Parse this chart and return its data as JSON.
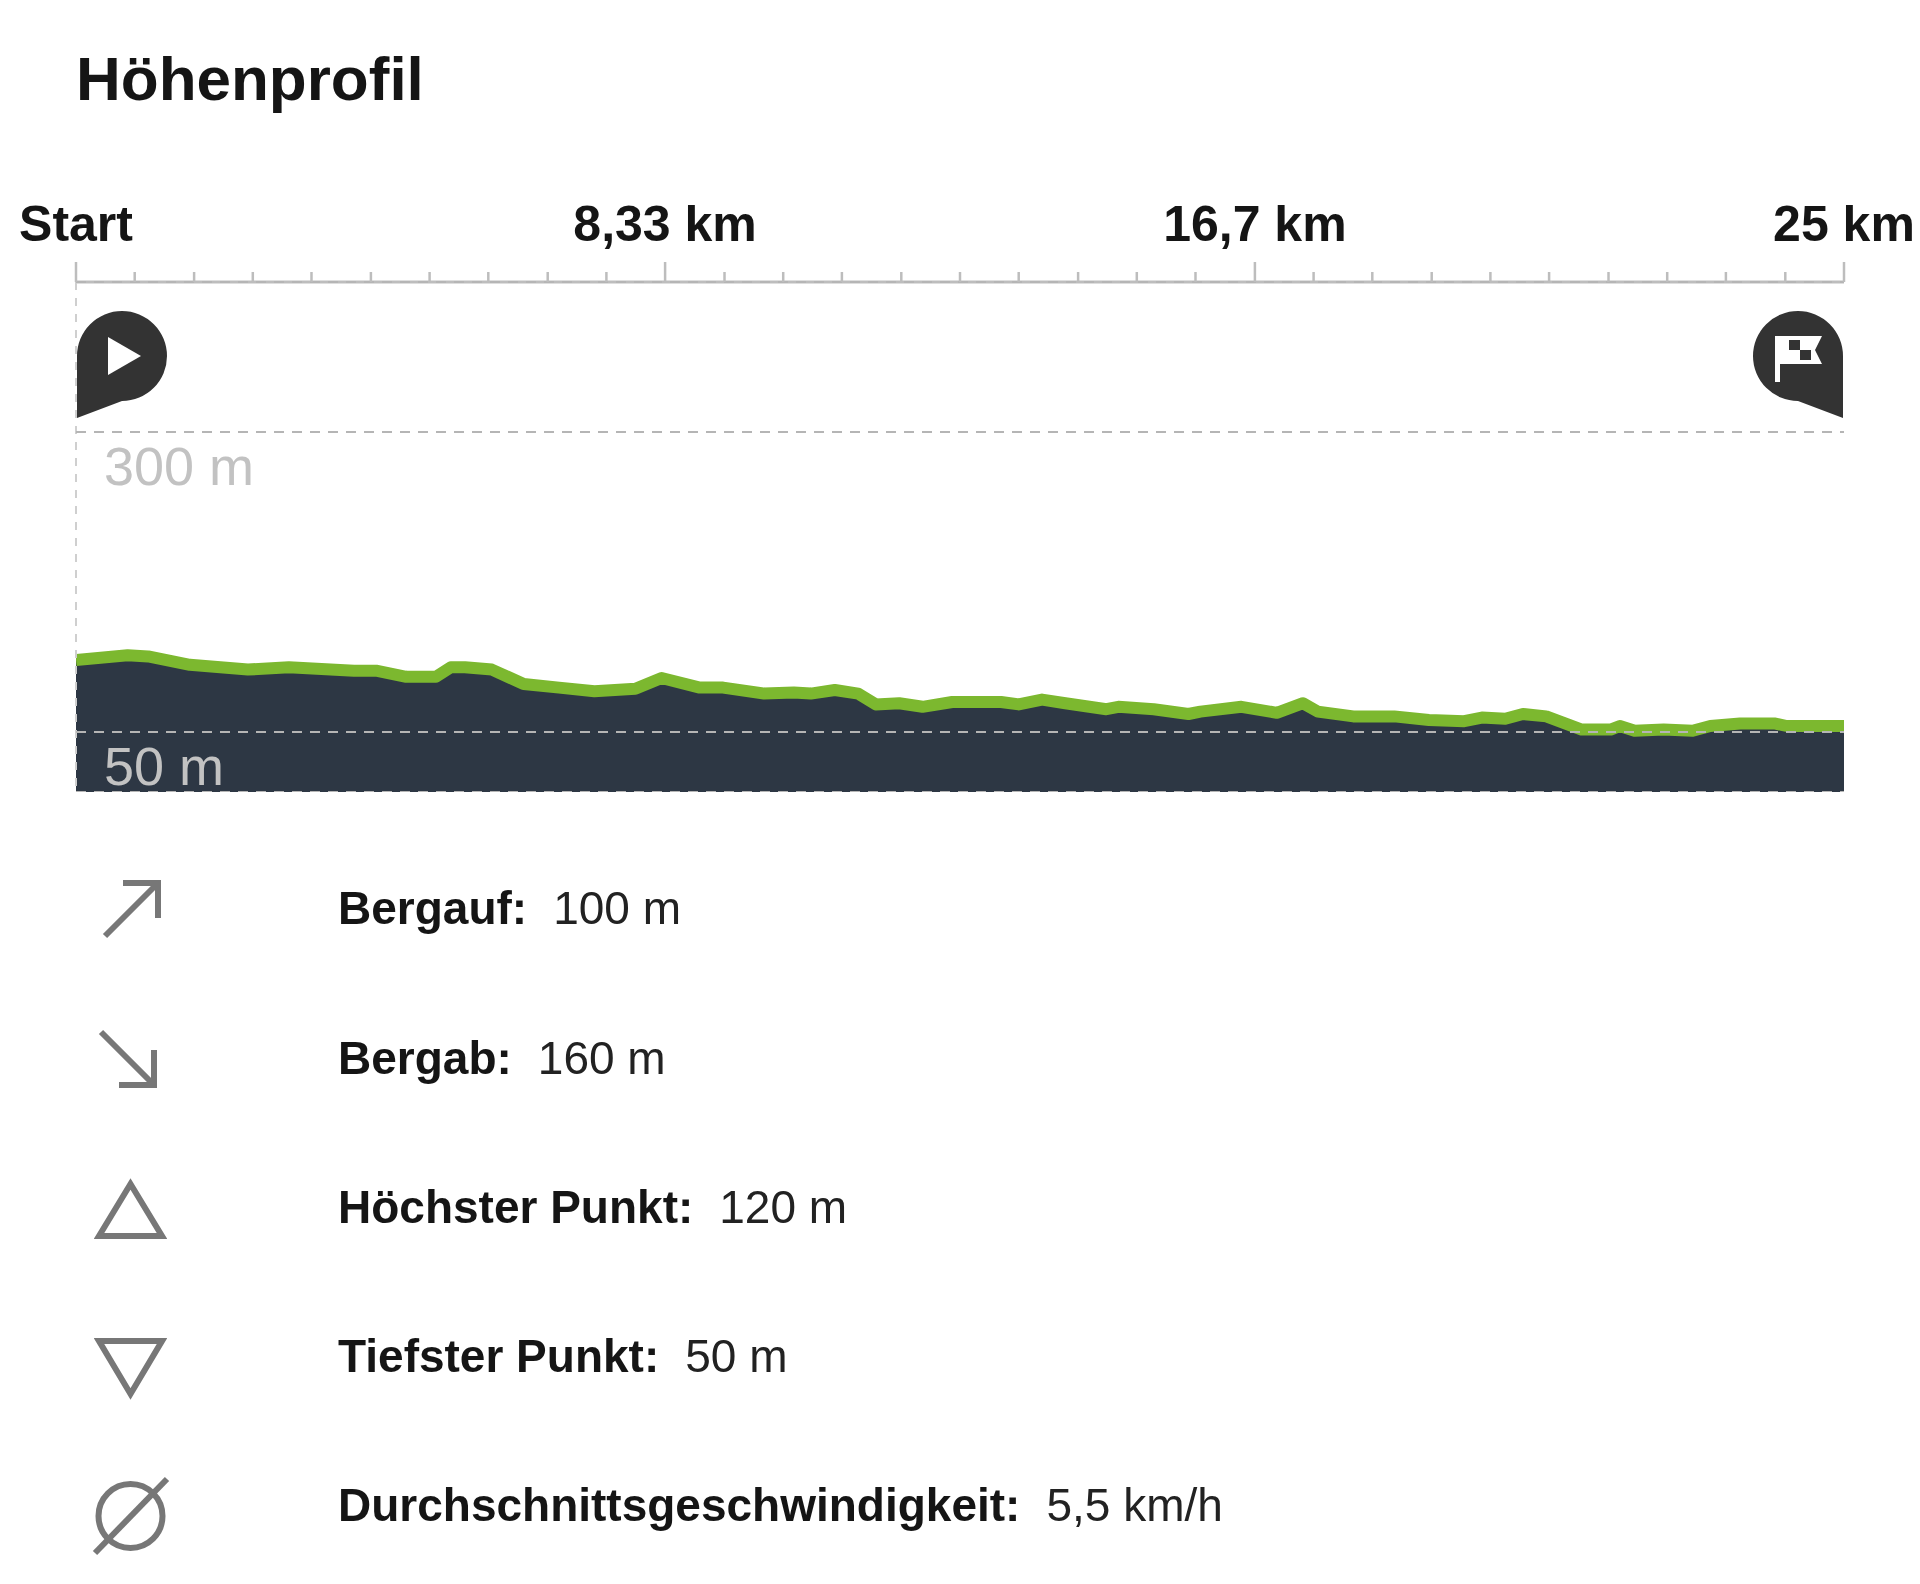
{
  "chart_data": {
    "type": "area",
    "title": "Höhenprofil",
    "x": [
      0,
      0.73,
      1.02,
      1.61,
      2.43,
      3.01,
      3.93,
      4.26,
      4.67,
      5.09,
      5.3,
      5.5,
      5.88,
      6.33,
      6.83,
      7.33,
      7.91,
      8.28,
      8.82,
      9.15,
      9.73,
      10.15,
      10.39,
      10.73,
      11.06,
      11.31,
      11.64,
      11.97,
      12.39,
      13.08,
      13.33,
      13.66,
      13.99,
      14.57,
      14.74,
      15.24,
      15.73,
      15.9,
      16.48,
      16.98,
      17.35,
      17.56,
      18.06,
      18.64,
      19.13,
      19.63,
      19.88,
      20.21,
      20.46,
      20.79,
      21.29,
      21.7,
      21.83,
      22.04,
      22.45,
      22.86,
      23.11,
      23.53,
      24.03,
      24.19,
      25
    ],
    "values": [
      110,
      114,
      113,
      106,
      102,
      104,
      101,
      101,
      96,
      96,
      104,
      104,
      102,
      90,
      87,
      84,
      86,
      95,
      87,
      87,
      82,
      83,
      82,
      85,
      82,
      73,
      74,
      71,
      75,
      75,
      73,
      77,
      74,
      69,
      71,
      69,
      65,
      67,
      71,
      66,
      74,
      67,
      63,
      63,
      60,
      59,
      62,
      61,
      65,
      63,
      52,
      52,
      55,
      51,
      52,
      51,
      55,
      57,
      57,
      55,
      55
    ],
    "color": "#7cb82f",
    "xlim": [
      0,
      25
    ],
    "xticks": [
      {
        "value": 0,
        "label": "Start"
      },
      {
        "value": 0.83,
        "label": null
      },
      {
        "value": 1.67,
        "label": null
      },
      {
        "value": 2.5,
        "label": null
      },
      {
        "value": 3.33,
        "label": null
      },
      {
        "value": 4.17,
        "label": null
      },
      {
        "value": 5,
        "label": null
      },
      {
        "value": 5.83,
        "label": null
      },
      {
        "value": 6.67,
        "label": null
      },
      {
        "value": 7.5,
        "label": null
      },
      {
        "value": 8.33,
        "label": "8,33 km"
      },
      {
        "value": 9.17,
        "label": null
      },
      {
        "value": 10,
        "label": null
      },
      {
        "value": 10.83,
        "label": null
      },
      {
        "value": 11.67,
        "label": null
      },
      {
        "value": 12.5,
        "label": null
      },
      {
        "value": 13.33,
        "label": null
      },
      {
        "value": 14.17,
        "label": null
      },
      {
        "value": 15,
        "label": null
      },
      {
        "value": 15.83,
        "label": null
      },
      {
        "value": 16.67,
        "label": "16,7 km"
      },
      {
        "value": 17.5,
        "label": null
      },
      {
        "value": 18.33,
        "label": null
      },
      {
        "value": 19.17,
        "label": null
      },
      {
        "value": 20,
        "label": null
      },
      {
        "value": 20.83,
        "label": null
      },
      {
        "value": 21.67,
        "label": null
      },
      {
        "value": 22.5,
        "label": null
      },
      {
        "value": 23.33,
        "label": null
      },
      {
        "value": 24.17,
        "label": null
      },
      {
        "value": 25,
        "label": "25 km"
      }
    ],
    "ylim": [
      0,
      425
    ],
    "yticks": [
      {
        "value": 50,
        "label": "50 m"
      },
      {
        "value": 300,
        "label": "300 m"
      }
    ],
    "grid": "y",
    "annotations": [
      "Bergauf: 100 m",
      "Bergab: 160 m",
      "Höchster Punkt: 120 m",
      "Tiefster Punkt: 50 m",
      "Durchschnittsgeschwindigkeit: 5,5 km/h"
    ]
  }
}
